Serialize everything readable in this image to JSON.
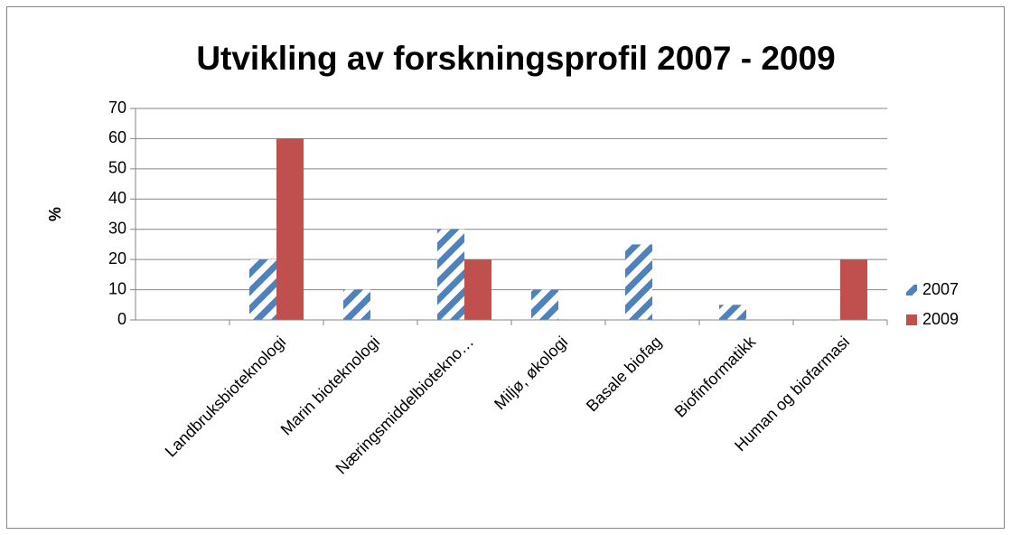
{
  "chart_data": {
    "type": "bar",
    "title": "Utvikling av forskningsprofil 2007 - 2009",
    "y_label": "%",
    "categories": [
      null,
      "Landbruksbioteknologi",
      "Marin bioteknologi",
      "Næringsmiddelbiotekno…",
      "Miljø, økologi",
      "Basale biofag",
      "Biofinformatikk",
      "Human og biofarmasi"
    ],
    "series": [
      {
        "name": "2007",
        "color": "#4f81bd",
        "pattern": "diagonal-stripes",
        "values": [
          null,
          20,
          10,
          30,
          10,
          25,
          5,
          0
        ]
      },
      {
        "name": "2009",
        "color": "#c0504d",
        "values": [
          null,
          60,
          0,
          20,
          0,
          0,
          0,
          20
        ]
      }
    ],
    "ylim": [
      0,
      70
    ],
    "yticks": [
      0,
      10,
      20,
      30,
      40,
      50,
      60,
      70
    ],
    "grid": true,
    "legend": "right"
  }
}
